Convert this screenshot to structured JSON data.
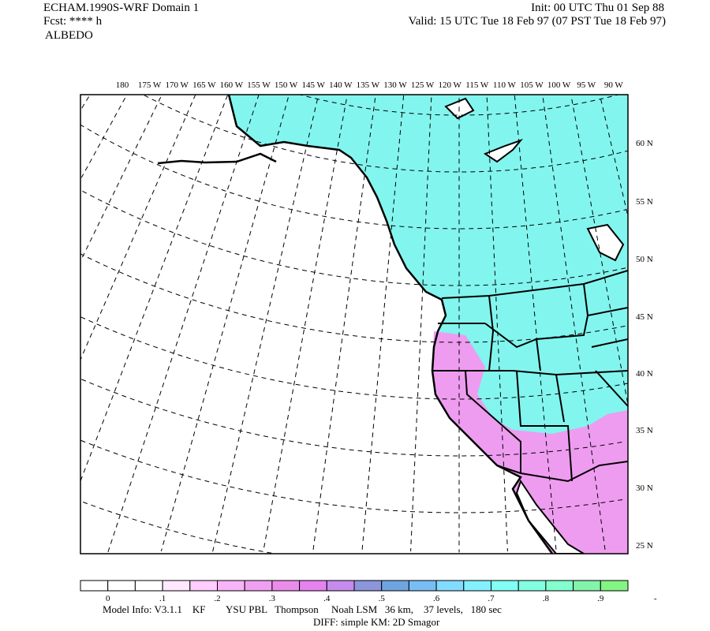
{
  "header": {
    "title": "ECHAM.1990S-WRF Domain 1",
    "forecast": "Fcst: **** h",
    "field": "ALBEDO",
    "init": "Init: 00 UTC Thu 01 Sep 88",
    "valid": "Valid: 15 UTC Tue 18 Feb 97 (07 PST Tue 18 Feb 97)"
  },
  "map": {
    "lon_labels": [
      "180",
      "175 W",
      "170 W",
      "165 W",
      "160 W",
      "155 W",
      "150 W",
      "145 W",
      "140 W",
      "135 W",
      "130 W",
      "125 W",
      "120 W",
      "115 W",
      "110 W",
      "105 W",
      "100 W",
      "95 W",
      "90 W"
    ],
    "lat_labels": [
      "60 N",
      "55 N",
      "50 N",
      "45 N",
      "40 N",
      "35 N",
      "30 N",
      "25 N"
    ],
    "colors": {
      "land_high": "#82f5ee",
      "land_low": "#ee9cf0",
      "ocean": "#ffffff"
    }
  },
  "colorbar": {
    "colors": [
      "#ffffff",
      "#ffffff",
      "#ffffff",
      "#ffe8ff",
      "#ffcdff",
      "#f7b4f7",
      "#f0a0f0",
      "#eb8ceb",
      "#e682f0",
      "#c68ced",
      "#8c96dc",
      "#6ea5e1",
      "#78bef5",
      "#82dcff",
      "#82f0ff",
      "#82fff5",
      "#82ffe1",
      "#82ffcd",
      "#82f5aa",
      "#82f582"
    ],
    "labels": [
      "0",
      ".1",
      ".2",
      ".3",
      ".4",
      ".5",
      ".6",
      ".7",
      ".8",
      ".9",
      "-"
    ]
  },
  "footer": {
    "model_info": "Model Info: V3.1.1    KF        YSU PBL   Thompson     Noah LSM   36 km,    37 levels,   180 sec",
    "diff": "DIFF: simple KM: 2D Smagor"
  }
}
